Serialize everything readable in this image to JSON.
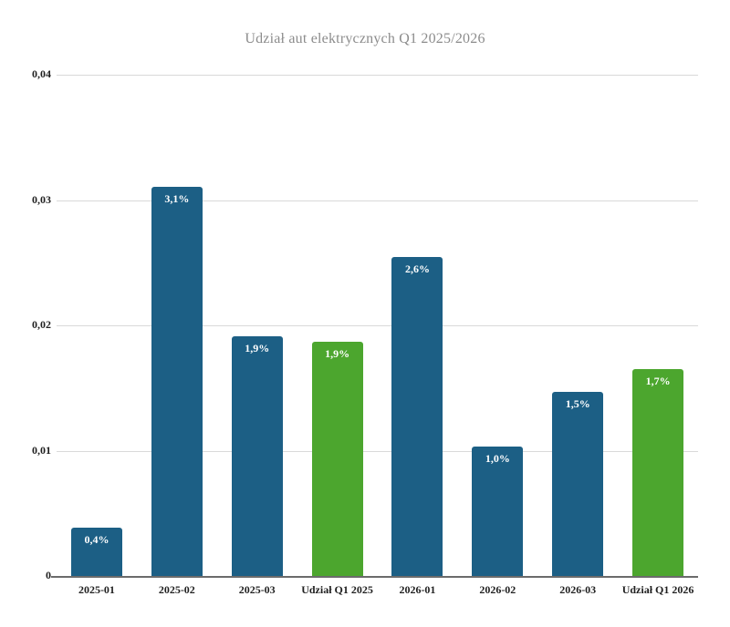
{
  "page": {
    "background_color": "#ffffff"
  },
  "chart_data": {
    "type": "bar",
    "title": "Udział aut elektrycznych Q1 2025/2026",
    "xlabel": "",
    "ylabel": "",
    "ylim": [
      0,
      0.04
    ],
    "grid": true,
    "legend": "none",
    "decimal_separator": ",",
    "yticks": [
      {
        "label": "0",
        "value": 0
      },
      {
        "label": "0,01",
        "value": 0.01
      },
      {
        "label": "0,02",
        "value": 0.02
      },
      {
        "label": "0,03",
        "value": 0.03
      },
      {
        "label": "0,04",
        "value": 0.04
      }
    ],
    "categories": [
      "2025-01",
      "2025-02",
      "2025-03",
      "Udział Q1 2025",
      "2026-01",
      "2026-02",
      "2026-03",
      "Udział Q1 2026"
    ],
    "bars": [
      {
        "category": "2025-01",
        "value": 0.0039,
        "data_label": "0,4%",
        "color": "#1c5f85"
      },
      {
        "category": "2025-02",
        "value": 0.0311,
        "data_label": "3,1%",
        "color": "#1c5f85"
      },
      {
        "category": "2025-03",
        "value": 0.0192,
        "data_label": "1,9%",
        "color": "#1c5f85"
      },
      {
        "category": "Udział Q1 2025",
        "value": 0.0188,
        "data_label": "1,9%",
        "color": "#4ca62e"
      },
      {
        "category": "2026-01",
        "value": 0.0255,
        "data_label": "2,6%",
        "color": "#1c5f85"
      },
      {
        "category": "2026-02",
        "value": 0.0104,
        "data_label": "1,0%",
        "color": "#1c5f85"
      },
      {
        "category": "2026-03",
        "value": 0.0148,
        "data_label": "1,5%",
        "color": "#1c5f85"
      },
      {
        "category": "Udział Q1 2026",
        "value": 0.0166,
        "data_label": "1,7%",
        "color": "#4ca62e"
      }
    ],
    "colors": {
      "month_bar": "#1c5f85",
      "quarter_bar": "#4ca62e",
      "gridline": "#d9d9d9",
      "axis_line": "#6b6b6b",
      "title_text": "#8c8c8c",
      "tick_text": "#1f1f1f",
      "bar_label_text": "#ffffff"
    }
  }
}
